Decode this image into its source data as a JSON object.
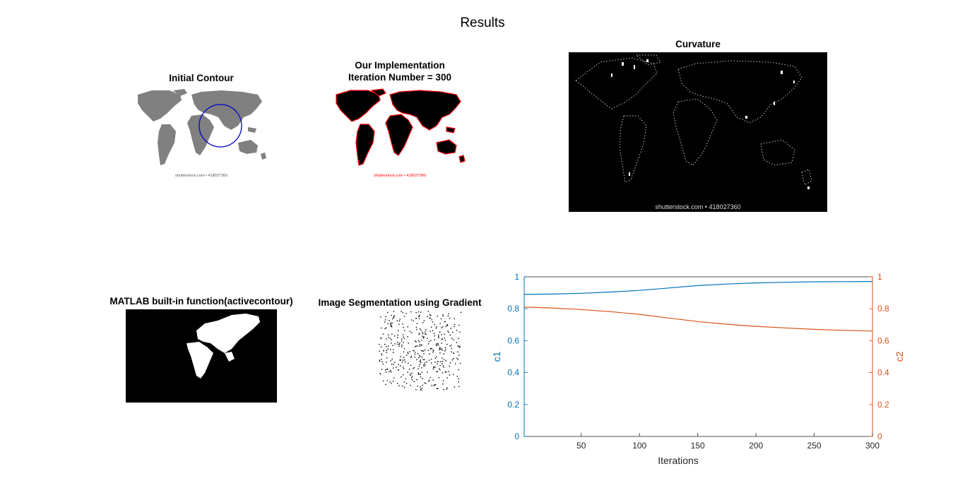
{
  "figure": {
    "title": "Results"
  },
  "panels": {
    "initial": {
      "title": "Initial Contour",
      "watermark": "shutterstock.com • 418027360"
    },
    "ours": {
      "title_line1": "Our Implementation",
      "title_line2": "Iteration Number = 300",
      "watermark": "shutterstock.com • 418027360"
    },
    "curvature": {
      "title": "Curvature",
      "watermark": "shutterstock.com • 418027360"
    },
    "matlab": {
      "title": "MATLAB built-in function(activecontour)"
    },
    "gradient": {
      "title": "Image Segmentation using Gradient"
    }
  },
  "colors": {
    "c1": "#0072BD",
    "c2": "#D95319",
    "land_gray": "#808080",
    "contour_blue": "#0000CC",
    "contour_red": "#FF0000"
  },
  "chart_data": {
    "type": "line",
    "xlabel": "Iterations",
    "ylabel_left": "c1",
    "ylabel_right": "c2",
    "xlim": [
      1,
      300
    ],
    "ylim_left": [
      0,
      1
    ],
    "ylim_right": [
      0,
      1
    ],
    "x_ticks": [
      50,
      100,
      150,
      200,
      250,
      300
    ],
    "y_ticks_left": [
      0,
      0.2,
      0.4,
      0.6,
      0.8,
      1
    ],
    "y_ticks_right": [
      0,
      0.2,
      0.4,
      0.6,
      0.8,
      1
    ],
    "x_tick_labels": [
      "50",
      "100",
      "150",
      "200",
      "250",
      "300"
    ],
    "y_tick_labels_left": [
      "0",
      "0.2",
      "0.4",
      "0.6",
      "0.8",
      "1"
    ],
    "y_tick_labels_right": [
      "0",
      "0.2",
      "0.4",
      "0.6",
      "0.8",
      "1"
    ],
    "x": [
      1,
      25,
      50,
      75,
      100,
      125,
      150,
      175,
      200,
      225,
      250,
      275,
      300
    ],
    "series": [
      {
        "name": "c1",
        "axis": "left",
        "values": [
          0.89,
          0.892,
          0.897,
          0.905,
          0.915,
          0.93,
          0.945,
          0.955,
          0.962,
          0.966,
          0.969,
          0.97,
          0.971
        ]
      },
      {
        "name": "c2",
        "axis": "right",
        "values": [
          0.81,
          0.805,
          0.795,
          0.782,
          0.765,
          0.742,
          0.72,
          0.703,
          0.69,
          0.68,
          0.671,
          0.665,
          0.66
        ]
      }
    ],
    "grid": false
  }
}
